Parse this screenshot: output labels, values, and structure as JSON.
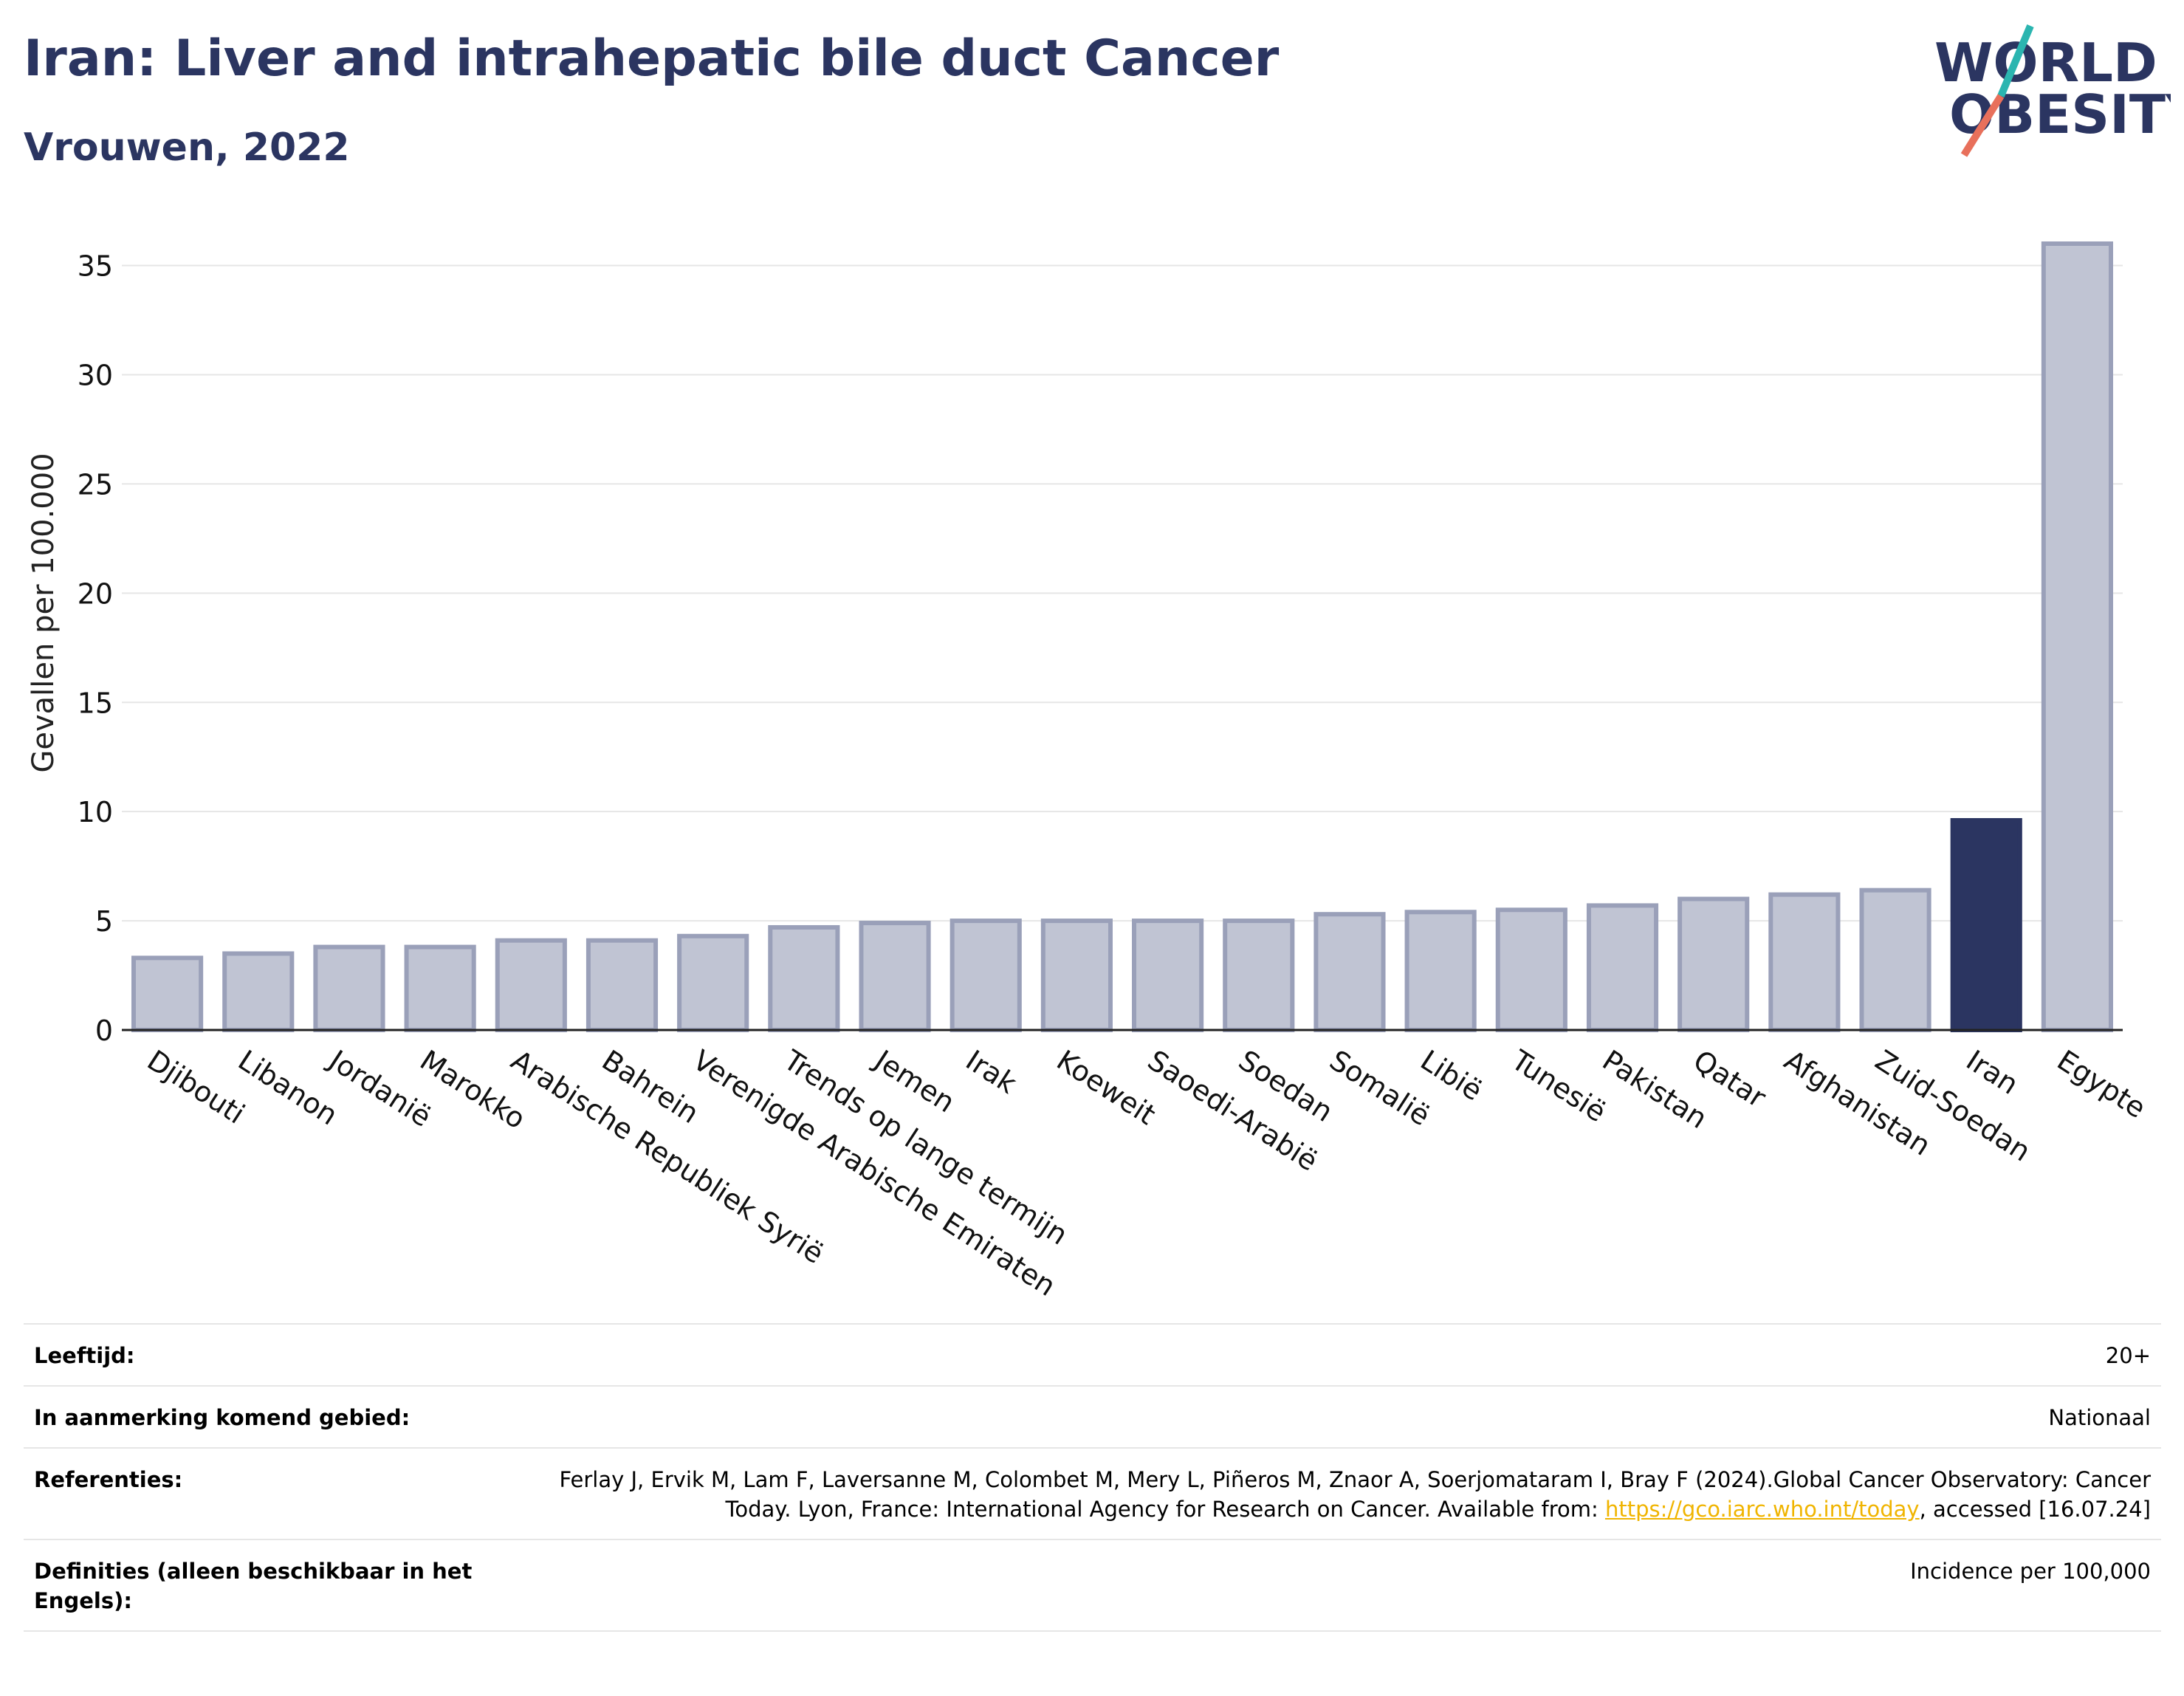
{
  "header": {
    "title": "Iran: Liver and intrahepatic bile duct Cancer",
    "subtitle": "Vrouwen, 2022"
  },
  "logo": {
    "line1": "WORLD",
    "line2": "OBESITY",
    "accent_teal": "#2bb5b0",
    "accent_coral": "#e8705b",
    "text_color": "#2b3561"
  },
  "chart_data": {
    "type": "bar",
    "title": "Iran: Liver and intrahepatic bile duct Cancer",
    "subtitle": "Vrouwen, 2022",
    "xlabel": "",
    "ylabel": "Gevallen per 100.000",
    "ylim": [
      0,
      36
    ],
    "yticks": [
      0,
      5,
      10,
      15,
      20,
      25,
      30,
      35
    ],
    "grid": true,
    "highlight": "Iran",
    "colors": {
      "bar": "#c0c4d3",
      "bar_border": "#9aa0b9",
      "highlight": "#2b3561",
      "grid": "#e6e6e6"
    },
    "categories": [
      "Djibouti",
      "Libanon",
      "Jordanië",
      "Marokko",
      "Arabische Republiek Syrië",
      "Bahrein",
      "Verenigde Arabische Emiraten",
      "Trends op lange termijn",
      "Jemen",
      "Irak",
      "Koeweit",
      "Saoedi-Arabië",
      "Soedan",
      "Somalië",
      "Libië",
      "Tunesië",
      "Pakistan",
      "Qatar",
      "Afghanistan",
      "Zuid-Soedan",
      "Iran",
      "Egypte"
    ],
    "values": [
      3.3,
      3.5,
      3.8,
      3.8,
      4.1,
      4.1,
      4.3,
      4.7,
      4.9,
      5.0,
      5.0,
      5.0,
      5.0,
      5.3,
      5.4,
      5.5,
      5.7,
      6.0,
      6.2,
      6.4,
      9.6,
      36.0
    ]
  },
  "info": [
    {
      "label": "Leeftijd:",
      "value": "20+"
    },
    {
      "label": "In aanmerking komend gebied:",
      "value": "Nationaal"
    },
    {
      "label": "Referenties:",
      "value_before": "Ferlay J, Ervik M, Lam F, Laversanne M, Colombet M, Mery L, Piñeros M, Znaor A, Soerjomataram I, Bray F (2024).Global Cancer Observatory: Cancer Today. Lyon, France: International Agency for Research on Cancer. Available from: ",
      "link": "https://gco.iarc.who.int/today",
      "value_after": ", accessed [16.07.24]"
    },
    {
      "label": "Definities (alleen beschikbaar in het Engels):",
      "value": "Incidence per 100,000"
    }
  ]
}
